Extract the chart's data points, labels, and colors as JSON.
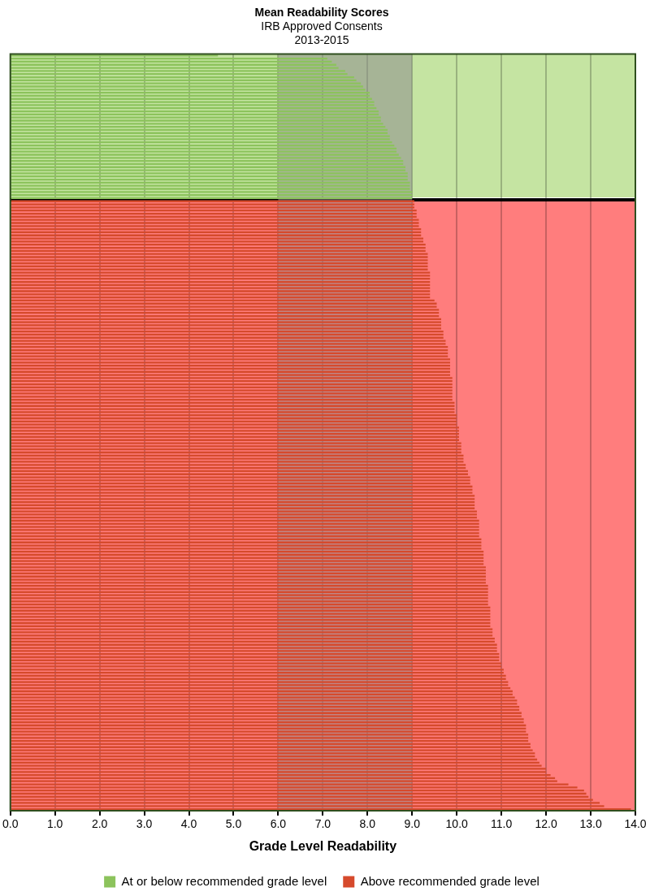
{
  "chart_data": {
    "type": "bar",
    "orientation": "horizontal",
    "title": "Mean Readability Scores",
    "subtitle": "IRB Approved Consents\n2013-2015",
    "xlabel": "Grade Level Readability",
    "categories": [
      null,
      null,
      null,
      null,
      null,
      null,
      null,
      null,
      null,
      null,
      null,
      null,
      null,
      null,
      null,
      null,
      null,
      null,
      null,
      null,
      null,
      null,
      null,
      null,
      null,
      null,
      null,
      null,
      null,
      null,
      null,
      null,
      null,
      null,
      null,
      null,
      null,
      null,
      null,
      null,
      null,
      null,
      null,
      null,
      null,
      null,
      null,
      null,
      null,
      null,
      null,
      null,
      null,
      null,
      null,
      null,
      null,
      null,
      null,
      null,
      null,
      null,
      null,
      null,
      null,
      null,
      null,
      null,
      null,
      null,
      null,
      null,
      null,
      null,
      null,
      null,
      null,
      null,
      null,
      null,
      null,
      null,
      null,
      null,
      null,
      null,
      null,
      null,
      null,
      null,
      null,
      null,
      null,
      null,
      null,
      null,
      null,
      null,
      null,
      null,
      null,
      null,
      null,
      null,
      null,
      null,
      null,
      null,
      null,
      null,
      null,
      null,
      null,
      null,
      null,
      null,
      null,
      null,
      null,
      null,
      null,
      null,
      null,
      null,
      null,
      null,
      null,
      null,
      null,
      null,
      null,
      null,
      null,
      null,
      null,
      null,
      null,
      null,
      null,
      null,
      null,
      null,
      null,
      null,
      null,
      null,
      null,
      null,
      null,
      null,
      null,
      null,
      null,
      null,
      null,
      null,
      null,
      null,
      null,
      null,
      null,
      null,
      null,
      null,
      null,
      null,
      null,
      null,
      null,
      null,
      null,
      null,
      null,
      null,
      null,
      null,
      null,
      null,
      null,
      null,
      null,
      null,
      null,
      null,
      null,
      null,
      null,
      null,
      null,
      null,
      null,
      null,
      null,
      null,
      null,
      null,
      null,
      null,
      null,
      null,
      null,
      null,
      null,
      null,
      null,
      null,
      null,
      null,
      null,
      null,
      null,
      null,
      null,
      null,
      null,
      null,
      null,
      null,
      null,
      null,
      null,
      null,
      null,
      null,
      null,
      null,
      null,
      null,
      null,
      null,
      null,
      null,
      null,
      null,
      null,
      null,
      null,
      null,
      null,
      null,
      null,
      null,
      null,
      null
    ],
    "series": [
      {
        "name": "At or below recommended grade level",
        "color": "#8cc35c",
        "values": [
          4.65,
          7.1,
          7.2,
          7.3,
          7.35,
          7.5,
          7.55,
          7.7,
          7.75,
          7.85,
          7.9,
          7.95,
          8.05,
          8.05,
          8.1,
          8.15,
          8.15,
          8.2,
          8.25,
          8.25,
          8.3,
          8.3,
          8.35,
          8.4,
          8.45,
          8.45,
          8.5,
          8.5,
          8.55,
          8.6,
          8.65,
          8.65,
          8.7,
          8.75,
          8.8,
          8.8,
          8.85,
          8.85,
          8.9,
          8.9,
          8.9,
          8.95,
          8.95,
          8.95,
          9.0,
          9.0,
          9.0,
          null,
          null,
          null,
          null,
          null,
          null,
          null,
          null,
          null,
          null,
          null,
          null,
          null,
          null,
          null,
          null,
          null,
          null,
          null,
          null,
          null,
          null,
          null,
          null,
          null,
          null,
          null,
          null,
          null,
          null,
          null,
          null,
          null,
          null,
          null,
          null,
          null,
          null,
          null,
          null,
          null,
          null,
          null,
          null,
          null,
          null,
          null,
          null,
          null,
          null,
          null,
          null,
          null,
          null,
          null,
          null,
          null,
          null,
          null,
          null,
          null,
          null,
          null,
          null,
          null,
          null,
          null,
          null,
          null,
          null,
          null,
          null,
          null,
          null,
          null,
          null,
          null,
          null,
          null,
          null,
          null,
          null,
          null,
          null,
          null,
          null,
          null,
          null,
          null,
          null,
          null,
          null,
          null,
          null,
          null,
          null,
          null,
          null,
          null,
          null,
          null,
          null,
          null,
          null,
          null,
          null,
          null,
          null,
          null,
          null,
          null,
          null,
          null,
          null,
          null,
          null,
          null,
          null,
          null,
          null,
          null,
          null,
          null,
          null,
          null,
          null,
          null,
          null,
          null,
          null,
          null,
          null,
          null,
          null,
          null,
          null,
          null,
          null,
          null,
          null,
          null,
          null,
          null,
          null,
          null,
          null,
          null,
          null,
          null,
          null,
          null,
          null,
          null,
          null,
          null,
          null,
          null,
          null,
          null,
          null,
          null,
          null,
          null,
          null,
          null,
          null,
          null,
          null,
          null,
          null,
          null,
          null,
          null,
          null,
          null,
          null,
          null,
          null,
          null,
          null,
          null,
          null,
          null,
          null,
          null,
          null,
          null,
          null,
          null,
          null,
          null,
          null,
          null,
          null,
          null,
          null,
          null
        ]
      },
      {
        "name": "Above recommended grade level",
        "color": "#d64a2c",
        "values": [
          null,
          null,
          null,
          null,
          null,
          null,
          null,
          null,
          null,
          null,
          null,
          null,
          null,
          null,
          null,
          null,
          null,
          null,
          null,
          null,
          null,
          null,
          null,
          null,
          null,
          null,
          null,
          null,
          null,
          null,
          null,
          null,
          null,
          null,
          null,
          null,
          null,
          null,
          null,
          null,
          null,
          null,
          null,
          null,
          null,
          null,
          null,
          9.05,
          9.05,
          9.05,
          9.1,
          9.1,
          9.1,
          9.15,
          9.15,
          9.15,
          9.2,
          9.2,
          9.2,
          9.25,
          9.25,
          9.3,
          9.3,
          9.3,
          9.35,
          9.35,
          9.35,
          9.35,
          9.35,
          9.35,
          9.4,
          9.4,
          9.4,
          9.4,
          9.4,
          9.4,
          9.4,
          9.4,
          9.4,
          9.5,
          9.55,
          9.55,
          9.6,
          9.6,
          9.6,
          9.65,
          9.65,
          9.65,
          9.65,
          9.7,
          9.7,
          9.7,
          9.75,
          9.75,
          9.8,
          9.8,
          9.8,
          9.8,
          9.85,
          9.85,
          9.85,
          9.85,
          9.85,
          9.85,
          9.9,
          9.9,
          9.9,
          9.9,
          9.9,
          9.9,
          9.9,
          9.9,
          9.95,
          9.95,
          9.95,
          9.95,
          10.0,
          10.0,
          10.0,
          10.0,
          10.05,
          10.05,
          10.05,
          10.05,
          10.05,
          10.1,
          10.1,
          10.1,
          10.1,
          10.15,
          10.15,
          10.15,
          10.2,
          10.2,
          10.25,
          10.25,
          10.3,
          10.3,
          10.3,
          10.35,
          10.35,
          10.35,
          10.4,
          10.4,
          10.4,
          10.4,
          10.4,
          10.45,
          10.45,
          10.45,
          10.5,
          10.5,
          10.5,
          10.5,
          10.5,
          10.5,
          10.55,
          10.55,
          10.55,
          10.55,
          10.6,
          10.6,
          10.6,
          10.6,
          10.6,
          10.65,
          10.65,
          10.65,
          10.65,
          10.65,
          10.65,
          10.7,
          10.7,
          10.7,
          10.7,
          10.7,
          10.7,
          10.7,
          10.75,
          10.75,
          10.75,
          10.75,
          10.75,
          10.75,
          10.75,
          10.8,
          10.8,
          10.8,
          10.85,
          10.85,
          10.9,
          10.9,
          10.9,
          10.95,
          10.95,
          10.95,
          11.0,
          11.0,
          11.05,
          11.05,
          11.1,
          11.1,
          11.15,
          11.15,
          11.2,
          11.25,
          11.25,
          11.3,
          11.35,
          11.35,
          11.4,
          11.4,
          11.45,
          11.45,
          11.5,
          11.5,
          11.55,
          11.55,
          11.55,
          11.6,
          11.6,
          11.6,
          11.65,
          11.65,
          11.7,
          11.75,
          11.75,
          11.8,
          11.85,
          11.9,
          12.0,
          12.0,
          12.1,
          12.2,
          12.25,
          12.5,
          12.7,
          12.85,
          12.9,
          12.95,
          13.05,
          13.2,
          13.3,
          13.9
        ]
      }
    ],
    "xlim": [
      0,
      14
    ],
    "xticks": [
      {
        "value": 0,
        "label": "0.0"
      },
      {
        "value": 1,
        "label": "1.0"
      },
      {
        "value": 2,
        "label": "2.0"
      },
      {
        "value": 3,
        "label": "3.0"
      },
      {
        "value": 4,
        "label": "4.0"
      },
      {
        "value": 5,
        "label": "5.0"
      },
      {
        "value": 6,
        "label": "6.0"
      },
      {
        "value": 7,
        "label": "7.0"
      },
      {
        "value": 8,
        "label": "8.0"
      },
      {
        "value": 9,
        "label": "9.0"
      },
      {
        "value": 10,
        "label": "10.0"
      },
      {
        "value": 11,
        "label": "11.0"
      },
      {
        "value": 12,
        "label": "12.0"
      },
      {
        "value": 13,
        "label": "13.0"
      },
      {
        "value": 14,
        "label": "14.0"
      }
    ],
    "bands": [
      {
        "axis": "x",
        "from": 6,
        "to": 9,
        "color": "#8c8c8c"
      }
    ],
    "grid": "x",
    "legend": "bottom"
  }
}
